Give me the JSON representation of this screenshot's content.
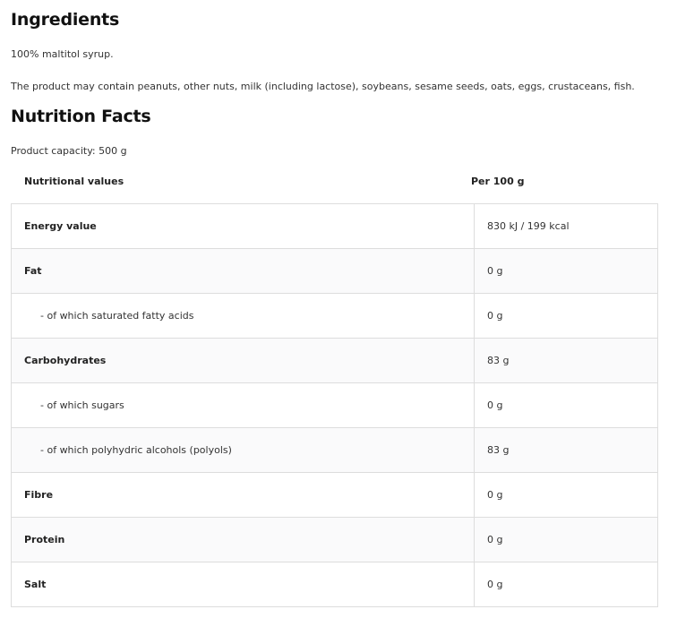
{
  "ingredients": {
    "title": "Ingredients",
    "text": "100% maltitol syrup.",
    "allergens": "The product may contain peanuts, other nuts, milk (including lactose), soybeans, sesame seeds, oats, eggs, crustaceans, fish."
  },
  "nutrition": {
    "title": "Nutrition Facts",
    "capacity": "Product capacity: 500 g",
    "headers": [
      "Nutritional values",
      "Per 100 g"
    ],
    "rows": [
      {
        "name": "Energy value",
        "value": "830 kJ / 199 kcal"
      },
      {
        "name": "Fat",
        "value": "0 g"
      },
      {
        "name": "- of which saturated fatty acids",
        "value": "0 g"
      },
      {
        "name": "Carbohydrates",
        "value": "83 g"
      },
      {
        "name": "- of which sugars",
        "value": "0 g"
      },
      {
        "name": "- of which polyhydric alcohols (polyols)",
        "value": "83 g"
      },
      {
        "name": "Fibre",
        "value": "0 g"
      },
      {
        "name": "Protein",
        "value": "0 g"
      },
      {
        "name": "Salt",
        "value": "0 g"
      }
    ]
  }
}
